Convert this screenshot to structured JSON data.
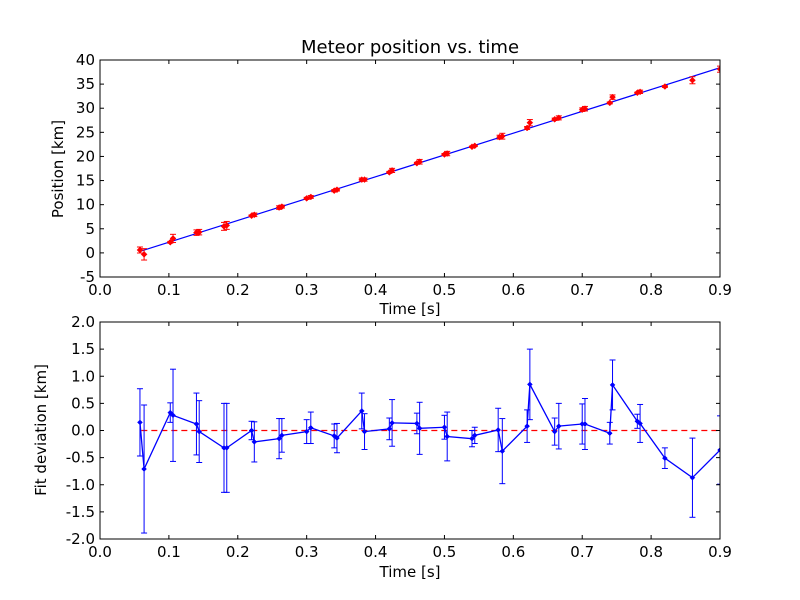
{
  "colors": {
    "fit_line": "#0000ff",
    "data_marker": "#ff0000",
    "residual": "#0000ff",
    "zero_line": "#ff0000"
  },
  "chart_data": [
    {
      "type": "scatter",
      "title": "Meteor position vs. time",
      "xlabel": "Time [s]",
      "ylabel": "Position [km]",
      "xlim": [
        0.0,
        0.9
      ],
      "ylim": [
        -5,
        40
      ],
      "xticks": [
        "0.0",
        "0.1",
        "0.2",
        "0.3",
        "0.4",
        "0.5",
        "0.6",
        "0.7",
        "0.8",
        "0.9"
      ],
      "yticks": [
        "-5",
        "0",
        "5",
        "10",
        "15",
        "20",
        "25",
        "30",
        "35",
        "40"
      ],
      "grid": false,
      "fit_line": {
        "x": [
          0.06,
          0.9
        ],
        "y": [
          0.4,
          38.4
        ]
      },
      "series": [
        {
          "marker": "diamond",
          "x": [
            0.058,
            0.064,
            0.102,
            0.106,
            0.14,
            0.144,
            0.18,
            0.184,
            0.22,
            0.224,
            0.26,
            0.264,
            0.3,
            0.306,
            0.34,
            0.344,
            0.38,
            0.384,
            0.42,
            0.424,
            0.46,
            0.464,
            0.5,
            0.504,
            0.54,
            0.544,
            0.58,
            0.584,
            0.62,
            0.624,
            0.66,
            0.666,
            0.7,
            0.704,
            0.74,
            0.744,
            0.78,
            0.784,
            0.82,
            0.86,
            0.9
          ],
          "y": [
            0.6,
            -0.3,
            2.2,
            3.0,
            4.2,
            4.3,
            5.5,
            5.7,
            7.7,
            7.9,
            9.4,
            9.6,
            11.3,
            11.6,
            12.9,
            13.1,
            15.2,
            15.2,
            16.7,
            17.1,
            18.6,
            18.9,
            20.4,
            20.6,
            22.0,
            22.2,
            24.0,
            24.2,
            25.9,
            27.0,
            27.7,
            28.0,
            29.7,
            29.9,
            31.1,
            32.3,
            33.2,
            33.4,
            34.5,
            35.8,
            38.1
          ]
        }
      ]
    },
    {
      "type": "line",
      "xlabel": "Time [s]",
      "ylabel": "Fit deviation [km]",
      "xlim": [
        0.0,
        0.9
      ],
      "ylim": [
        -2.0,
        2.0
      ],
      "xticks": [
        "0.0",
        "0.1",
        "0.2",
        "0.3",
        "0.4",
        "0.5",
        "0.6",
        "0.7",
        "0.8",
        "0.9"
      ],
      "yticks": [
        "-2.0",
        "-1.5",
        "-1.0",
        "-0.5",
        "0.0",
        "0.5",
        "1.0",
        "1.5",
        "2.0"
      ],
      "grid": false,
      "zero_line": 0.0,
      "series": [
        {
          "x": [
            0.058,
            0.064,
            0.102,
            0.106,
            0.14,
            0.144,
            0.18,
            0.184,
            0.22,
            0.224,
            0.26,
            0.264,
            0.3,
            0.306,
            0.34,
            0.344,
            0.38,
            0.384,
            0.42,
            0.424,
            0.46,
            0.464,
            0.5,
            0.504,
            0.54,
            0.544,
            0.578,
            0.584,
            0.62,
            0.624,
            0.66,
            0.666,
            0.7,
            0.704,
            0.74,
            0.744,
            0.78,
            0.784,
            0.82,
            0.86,
            0.9
          ],
          "y": [
            0.15,
            -0.71,
            0.33,
            0.28,
            0.12,
            -0.02,
            -0.32,
            -0.32,
            0.0,
            -0.21,
            -0.15,
            -0.09,
            -0.02,
            0.05,
            -0.1,
            -0.14,
            0.36,
            -0.02,
            0.03,
            0.14,
            0.13,
            0.04,
            0.06,
            -0.11,
            -0.15,
            -0.09,
            0.01,
            -0.38,
            0.08,
            0.85,
            -0.02,
            0.08,
            0.12,
            0.12,
            -0.05,
            0.84,
            0.17,
            0.13,
            -0.51,
            -0.87,
            -0.36
          ],
          "err": [
            0.62,
            1.18,
            0.18,
            0.85,
            0.57,
            0.57,
            0.82,
            0.82,
            0.17,
            0.37,
            0.37,
            0.31,
            0.22,
            0.29,
            0.22,
            0.27,
            0.33,
            0.33,
            0.2,
            0.43,
            0.19,
            0.48,
            0.22,
            0.45,
            0.15,
            0.15,
            0.4,
            0.6,
            0.3,
            0.65,
            0.25,
            0.42,
            0.37,
            0.47,
            0.2,
            0.46,
            0.13,
            0.35,
            0.19,
            0.73,
            0.63
          ]
        }
      ]
    }
  ]
}
